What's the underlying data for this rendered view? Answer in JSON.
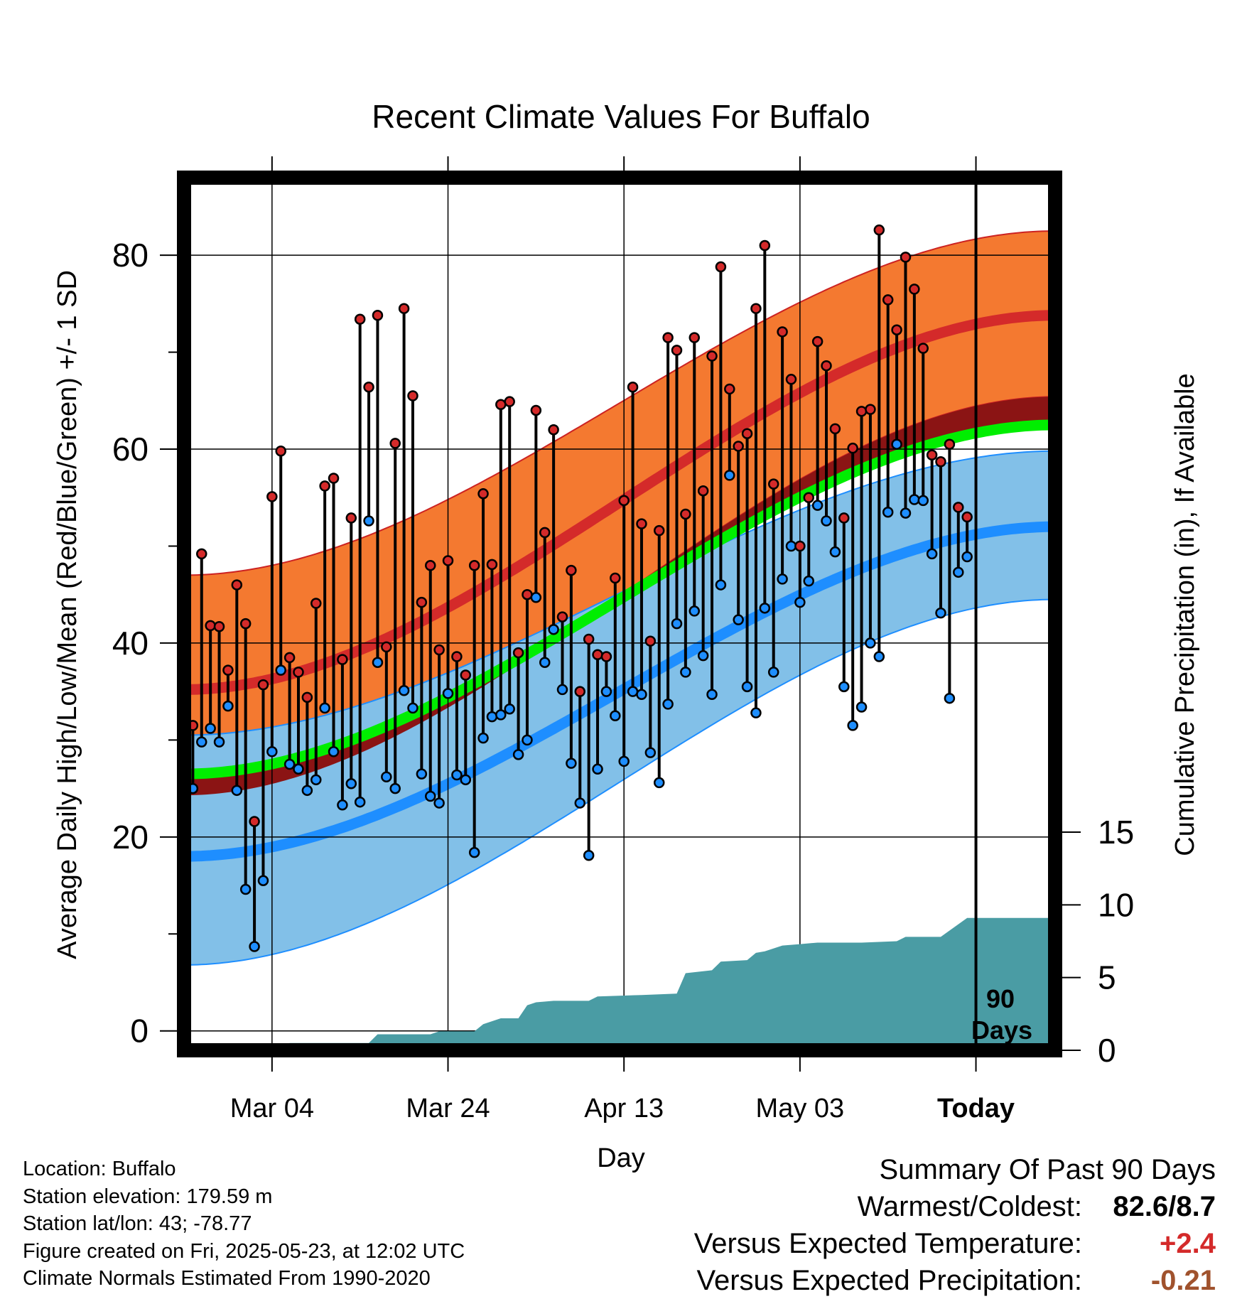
{
  "title": "Recent Climate Values For Buffalo",
  "chart_data": {
    "type": "line",
    "title": "Recent Climate Values For Buffalo",
    "xlabel": "Day",
    "ylabel": "Average Daily High/Low/Mean (Red/Blue/Green) +/- 1 SD",
    "y2label": "Cumulative Precipitation (in), If Available",
    "x_tick_labels": [
      "Mar 04",
      "Mar 24",
      "Apr 13",
      "May 03",
      "Today"
    ],
    "y_ticks": [
      0,
      20,
      40,
      60,
      80
    ],
    "y2_ticks": [
      0,
      5,
      10,
      15
    ],
    "ylim": [
      -2,
      88
    ],
    "y2lim": [
      0,
      60
    ],
    "day_range": [
      -90,
      9
    ],
    "today_label": "90 Days",
    "normal_high": {
      "start": 35.2,
      "end": 73.8,
      "sd_lower": [
        24.3,
        65.4
      ],
      "sd_upper": [
        47.0,
        82.5
      ]
    },
    "normal_low": {
      "start": 18.0,
      "end": 52.0,
      "sd_lower": [
        6.8,
        44.5
      ],
      "sd_upper": [
        30.5,
        59.8
      ]
    },
    "normal_mean": {
      "start": 26.5,
      "end": 62.5
    },
    "daily_high": [
      31.0,
      31.5,
      49.2,
      41.8,
      41.7,
      37.2,
      46.0,
      42.0,
      21.6,
      35.7,
      55.1,
      59.8,
      38.5,
      37.0,
      34.4,
      44.1,
      56.2,
      57.0,
      38.3,
      52.9,
      73.4,
      66.4,
      73.8,
      39.6,
      60.6,
      74.5,
      65.5,
      44.2,
      48.0,
      39.3,
      48.5,
      38.6,
      36.7,
      48.0,
      55.4,
      48.1,
      64.6,
      64.9,
      39.0,
      45.0,
      64.0,
      51.4,
      62.0,
      42.7,
      47.5,
      35.0,
      40.4,
      38.8,
      38.6,
      46.7,
      54.7,
      66.4,
      52.3,
      40.2,
      51.6,
      71.5,
      70.2,
      53.3,
      71.5,
      55.7,
      69.6,
      78.8,
      66.2,
      60.3,
      61.6,
      74.5,
      81.0,
      56.4,
      72.1,
      67.2,
      50.0,
      55.0,
      71.1,
      68.6,
      62.1,
      52.9,
      60.1,
      63.9,
      64.1,
      82.6,
      75.4,
      72.3,
      79.8,
      76.5,
      70.4,
      59.4,
      58.7,
      60.5,
      54.0,
      53.0
    ],
    "daily_low": [
      16.0,
      25.0,
      29.8,
      31.2,
      29.8,
      33.5,
      24.8,
      14.6,
      8.7,
      15.5,
      28.8,
      37.2,
      27.5,
      27.0,
      24.8,
      25.9,
      33.3,
      28.8,
      23.3,
      25.5,
      23.6,
      52.6,
      38.0,
      26.2,
      25.0,
      35.1,
      33.3,
      26.5,
      24.2,
      23.5,
      34.8,
      26.4,
      25.9,
      18.4,
      30.2,
      32.4,
      32.6,
      33.2,
      28.5,
      30.0,
      44.7,
      38.0,
      41.4,
      35.2,
      27.6,
      23.5,
      18.1,
      27.0,
      35.0,
      32.5,
      27.8,
      35.0,
      34.7,
      28.7,
      25.6,
      33.7,
      42.0,
      37.0,
      43.3,
      38.7,
      34.7,
      46.0,
      57.3,
      42.4,
      35.5,
      32.8,
      43.6,
      37.0,
      46.6,
      50.0,
      44.2,
      46.4,
      54.2,
      52.6,
      49.4,
      35.5,
      31.5,
      33.4,
      40.0,
      38.6,
      53.5,
      60.5,
      53.4,
      54.8,
      54.7,
      49.2,
      43.1,
      34.3,
      47.3,
      48.9
    ],
    "precip_cumulative": [
      [
        -90,
        0
      ],
      [
        -79,
        0
      ],
      [
        -78,
        0.5
      ],
      [
        -69,
        0.5
      ],
      [
        -68,
        1.1
      ],
      [
        -62,
        1.1
      ],
      [
        -61,
        1.3
      ],
      [
        -57,
        1.3
      ],
      [
        -56,
        1.8
      ],
      [
        -54,
        2.2
      ],
      [
        -52,
        2.2
      ],
      [
        -51,
        3.1
      ],
      [
        -50,
        3.3
      ],
      [
        -48,
        3.4
      ],
      [
        -44,
        3.4
      ],
      [
        -43,
        3.7
      ],
      [
        -38,
        3.8
      ],
      [
        -34,
        3.9
      ],
      [
        -33,
        5.3
      ],
      [
        -30,
        5.5
      ],
      [
        -29,
        6.1
      ],
      [
        -26,
        6.2
      ],
      [
        -25,
        6.7
      ],
      [
        -24,
        6.8
      ],
      [
        -22,
        7.2
      ],
      [
        -20,
        7.3
      ],
      [
        -18,
        7.4
      ],
      [
        -13,
        7.4
      ],
      [
        -9,
        7.5
      ],
      [
        -8,
        7.8
      ],
      [
        -4,
        7.8
      ],
      [
        -1,
        9.1
      ],
      [
        9,
        9.1
      ]
    ]
  },
  "station_info": {
    "location": "Location: Buffalo",
    "elevation": "Station elevation: 179.59 m",
    "latlon": "Station lat/lon: 43; -78.77",
    "created": "Figure created on Fri, 2025-05-23, at 12:02 UTC",
    "normals": "Climate Normals Estimated From 1990-2020"
  },
  "summary": {
    "title": "Summary Of Past 90 Days",
    "warmest_coldest_label": "Warmest/Coldest:",
    "warmest_coldest_value": "82.6/8.7",
    "temp_label": "Versus Expected Temperature:",
    "temp_value": "+2.4",
    "precip_label": "Versus Expected Precipitation:",
    "precip_value": "-0.21"
  },
  "colors": {
    "high_band": "#f47930",
    "high_line": "#d42a2a",
    "high_below_mean": "#8b1414",
    "low_band": "#82c0e8",
    "low_line": "#1e8eff",
    "mean_line": "#00ee00",
    "precip": "#4a9ca4",
    "high_marker": "#d42a2a",
    "low_marker": "#1e8eff",
    "temp_anomaly": "#d42a2a",
    "precip_anomaly": "#a0522d"
  }
}
